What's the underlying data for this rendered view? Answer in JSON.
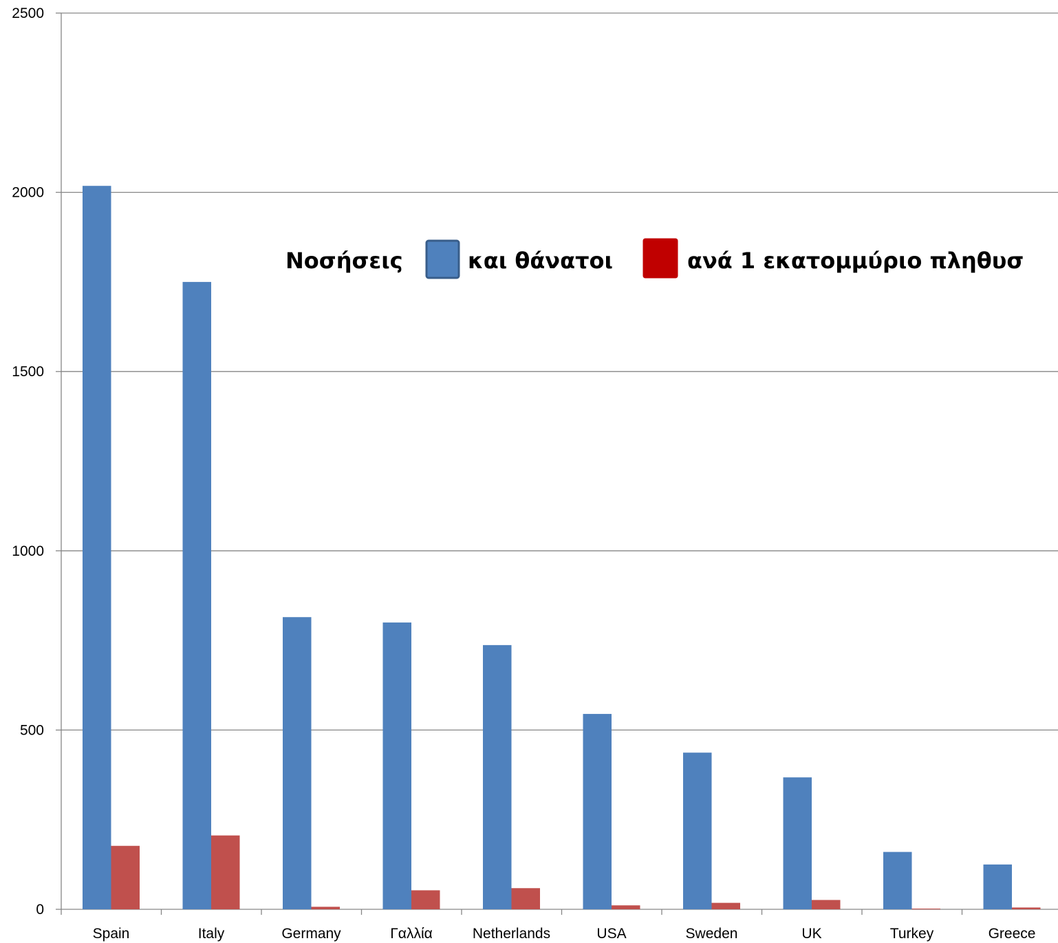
{
  "chart_data": {
    "type": "bar",
    "title_parts": [
      "Νοσήσεις",
      "και θάνατοι",
      "ανά 1 εκατομμύριο πληθυσ"
    ],
    "categories": [
      "Spain",
      "Italy",
      "Germany",
      "Γαλλία",
      "Netherlands",
      "USA",
      "Sweden",
      "UK",
      "Turkey",
      "Greece"
    ],
    "series": [
      {
        "color": "#4F81BD",
        "values": [
          2018,
          1750,
          815,
          800,
          737,
          545,
          437,
          368,
          160,
          125
        ]
      },
      {
        "color": "#C0504D",
        "values": [
          177,
          206,
          7,
          53,
          59,
          11,
          18,
          26,
          2,
          5
        ]
      }
    ],
    "ylim": [
      0,
      2500
    ],
    "yticks": [
      0,
      500,
      1000,
      1500,
      2000,
      2500
    ],
    "grid": true,
    "xlabel": "",
    "ylabel": "",
    "legend_swatches": [
      {
        "color": "#4F81BD",
        "border": "#385D8A"
      },
      {
        "color": "#C00000",
        "border": "#C00000"
      }
    ]
  }
}
